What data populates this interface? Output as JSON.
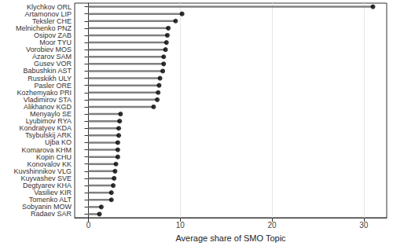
{
  "chart_data": {
    "type": "bar",
    "orientation": "horizontal",
    "marker": "circle",
    "x_label": "Average share of SMO Topic",
    "categories": [
      "Klychkov ORL",
      "Artamonov LIP",
      "Teksler CHE",
      "Melnichenko PNZ",
      "Osipov ZAB",
      "Moor TYU",
      "Vorobiev MOS",
      "Azarov SAM",
      "Gusev VOR",
      "Babushkin AST",
      "Russkikh ULY",
      "Pasler ORE",
      "Kozhemyako PRI",
      "Vladimirov STA",
      "Alikhanov KGD",
      "Menyaylo SE",
      "Lyubimov RYA",
      "Kondratyev KDA",
      "Tsybulskij ARK",
      "Ujba KO",
      "Komarova KHM",
      "Kopin CHU",
      "Konovalov KK",
      "Kuvshinnikov VLG",
      "Kuyvashev SVE",
      "Degtyarev KHA",
      "Vasiliev KIR",
      "Tomenko ALT",
      "Sobyanin MOW",
      "Radaev SAR"
    ],
    "values": [
      31.0,
      10.2,
      9.5,
      8.7,
      8.6,
      8.5,
      8.4,
      8.2,
      8.2,
      8.1,
      7.8,
      7.7,
      7.6,
      7.5,
      7.1,
      3.5,
      3.4,
      3.3,
      3.3,
      3.2,
      3.2,
      3.2,
      3.0,
      2.9,
      2.8,
      2.7,
      2.5,
      2.5,
      1.4,
      1.2
    ],
    "color": "#808080",
    "xlim": [
      -1.5,
      32.5
    ],
    "xticks": [
      0,
      10,
      20,
      30
    ],
    "grid": true
  }
}
